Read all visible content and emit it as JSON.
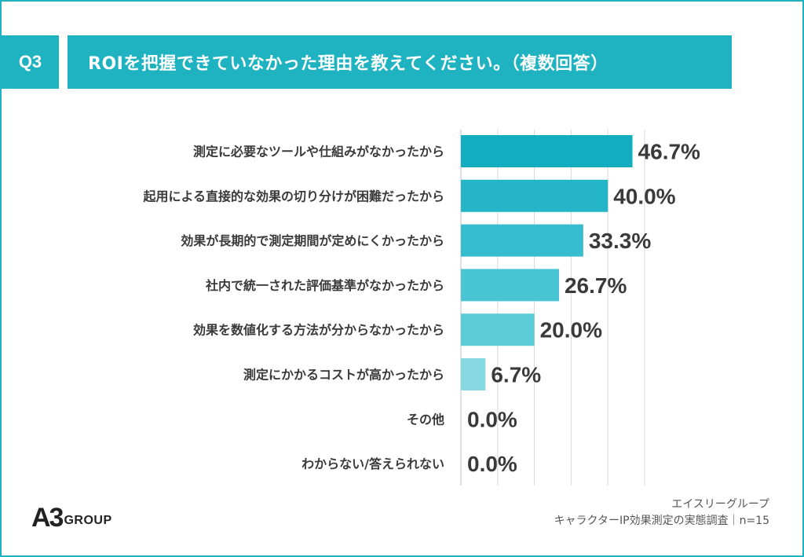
{
  "header": {
    "badge": "Q3",
    "title": "ROIを把握できていなかった理由を教えてください。（複数回答）"
  },
  "chart_data": {
    "type": "bar",
    "orientation": "horizontal",
    "categories": [
      "測定に必要なツールや仕組みがなかったから",
      "起用による直接的な効果の切り分けが困難だったから",
      "効果が長期的で測定期間が定めにくかったから",
      "社内で統一された評価基準がなかったから",
      "効果を数値化する方法が分からなかったから",
      "測定にかかるコストが高かったから",
      "その他",
      "わからない/答えられない"
    ],
    "values": [
      46.7,
      40.0,
      33.3,
      26.7,
      20.0,
      6.7,
      0.0,
      0.0
    ],
    "value_labels": [
      "46.7%",
      "40.0%",
      "33.3%",
      "26.7%",
      "20.0%",
      "6.7%",
      "0.0%",
      "0.0%"
    ],
    "unit": "%",
    "xlim": [
      0,
      50
    ],
    "grid_step": 10,
    "bar_colors": [
      "#14adc0",
      "#24b5c7",
      "#36bdcd",
      "#48c4d3",
      "#5ccbd8",
      "#86d9e2",
      "#a6e3ea",
      "#a6e3ea"
    ],
    "gridline_color": "#d9d9d9",
    "title": "ROIを把握できていなかった理由を教えてください。（複数回答）",
    "xlabel": "",
    "ylabel": ""
  },
  "brand": {
    "logo_mark": "A3",
    "logo_text": "GROUP",
    "accent_color": "#1fb3c2"
  },
  "footer": {
    "company": "エイスリーグループ",
    "survey": "キャラクターIP効果測定の実態調査｜n=15"
  }
}
